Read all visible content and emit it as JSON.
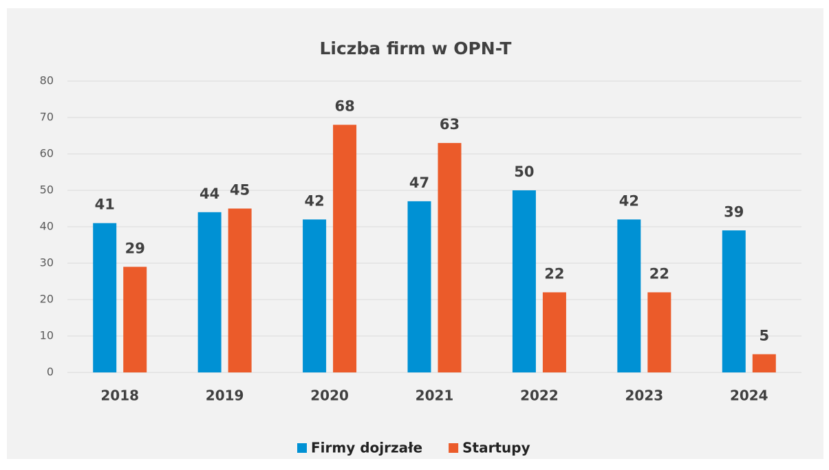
{
  "chart_data": {
    "type": "bar",
    "title": "Liczba firm w OPN-T",
    "categories": [
      "2018",
      "2019",
      "2020",
      "2021",
      "2022",
      "2023",
      "2024"
    ],
    "series": [
      {
        "name": "Firmy dojrzałe",
        "color": "#0091d4",
        "values": [
          41,
          44,
          42,
          47,
          50,
          42,
          39
        ]
      },
      {
        "name": "Startupy",
        "color": "#eb5b2a",
        "values": [
          29,
          45,
          68,
          63,
          22,
          22,
          5
        ]
      }
    ],
    "ylim": [
      0,
      80
    ],
    "yticks": [
      0,
      10,
      20,
      30,
      40,
      50,
      60,
      70,
      80
    ],
    "grid": true,
    "legend": "bottom"
  }
}
